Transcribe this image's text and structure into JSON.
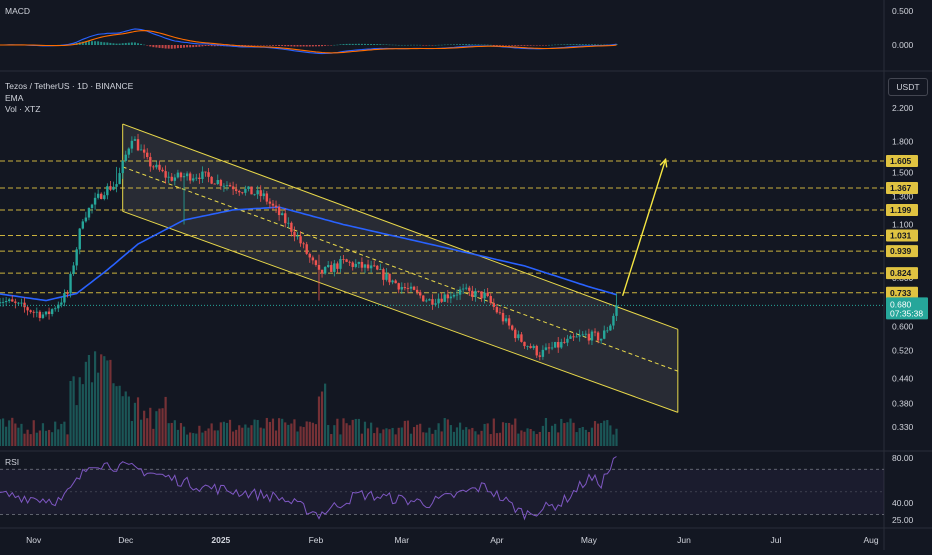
{
  "header": {
    "symbol_line": "Tezos / TetherUS · 1D · BINANCE",
    "ema_label": "EMA",
    "vol_label": "Vol · XTZ",
    "currency_button": "USDT",
    "macd_label": "MACD",
    "rsi_label": "RSI"
  },
  "colors": {
    "background": "#131722",
    "up": "#26a69a",
    "down": "#ef5350",
    "ema": "#2962ff",
    "channel": "#e8d84a",
    "level_line": "#e0c341",
    "arrow": "#f5e642",
    "rsi": "#7e57c2",
    "macd_line": "#2962ff",
    "signal_line": "#ff6d00",
    "last_price_tag": "#26a69a"
  },
  "chart_data": [
    {
      "type": "candlestick",
      "name": "price",
      "x_axis": {
        "ticks": [
          "Nov",
          "Dec",
          "2025",
          "Feb",
          "Mar",
          "Apr",
          "May",
          "Jun",
          "Jul",
          "Aug"
        ]
      },
      "y_axis": {
        "scale": "log",
        "range": [
          0.3,
          2.3
        ],
        "ticks": [
          "2.200",
          "1.800",
          "1.500",
          "1.300",
          "1.100",
          "0.940",
          "0.800",
          "0.700",
          "0.600",
          "0.520",
          "0.440",
          "0.380",
          "0.330"
        ]
      },
      "last_price": {
        "value": "0.680",
        "countdown": "07:35:38"
      },
      "horizontal_levels": [
        "1.605",
        "1.367",
        "1.199",
        "1.031",
        "0.939",
        "0.824",
        "0.733"
      ],
      "ohlc_anchors": [
        {
          "date": "2024-10-20",
          "close": 0.71
        },
        {
          "date": "2024-11-05",
          "close": 0.64
        },
        {
          "date": "2024-11-12",
          "close": 0.73
        },
        {
          "date": "2024-11-17",
          "close": 1.15
        },
        {
          "date": "2024-11-24",
          "close": 1.35
        },
        {
          "date": "2024-11-28",
          "close": 1.4
        },
        {
          "date": "2024-12-03",
          "close": 1.86
        },
        {
          "date": "2024-12-08",
          "close": 1.6
        },
        {
          "date": "2024-12-15",
          "close": 1.45
        },
        {
          "date": "2024-12-25",
          "close": 1.48
        },
        {
          "date": "2025-01-05",
          "close": 1.38
        },
        {
          "date": "2025-01-15",
          "close": 1.3
        },
        {
          "date": "2025-01-25",
          "close": 1.05
        },
        {
          "date": "2025-02-02",
          "close": 0.82
        },
        {
          "date": "2025-02-10",
          "close": 0.88
        },
        {
          "date": "2025-02-20",
          "close": 0.84
        },
        {
          "date": "2025-03-01",
          "close": 0.76
        },
        {
          "date": "2025-03-10",
          "close": 0.7
        },
        {
          "date": "2025-03-20",
          "close": 0.74
        },
        {
          "date": "2025-03-28",
          "close": 0.72
        },
        {
          "date": "2025-04-08",
          "close": 0.56
        },
        {
          "date": "2025-04-15",
          "close": 0.51
        },
        {
          "date": "2025-04-22",
          "close": 0.54
        },
        {
          "date": "2025-04-30",
          "close": 0.57
        },
        {
          "date": "2025-05-05",
          "close": 0.56
        },
        {
          "date": "2025-05-08",
          "close": 0.61
        },
        {
          "date": "2025-05-10",
          "close": 0.68
        }
      ],
      "ema_anchors": [
        {
          "date": "2024-10-20",
          "value": 0.73
        },
        {
          "date": "2024-11-05",
          "value": 0.7
        },
        {
          "date": "2024-11-15",
          "value": 0.73
        },
        {
          "date": "2024-11-25",
          "value": 0.84
        },
        {
          "date": "2024-12-05",
          "value": 0.98
        },
        {
          "date": "2024-12-20",
          "value": 1.13
        },
        {
          "date": "2025-01-05",
          "value": 1.2
        },
        {
          "date": "2025-01-20",
          "value": 1.22
        },
        {
          "date": "2025-02-10",
          "value": 1.1
        },
        {
          "date": "2025-03-10",
          "value": 0.98
        },
        {
          "date": "2025-04-10",
          "value": 0.86
        },
        {
          "date": "2025-05-01",
          "value": 0.76
        },
        {
          "date": "2025-05-10",
          "value": 0.725
        }
      ],
      "channel": {
        "upper": [
          {
            "date": "2024-11-30",
            "value": 2.0
          },
          {
            "date": "2025-05-30",
            "value": 0.59
          }
        ],
        "middle": [
          {
            "date": "2024-11-30",
            "value": 1.55
          },
          {
            "date": "2025-05-30",
            "value": 0.46
          }
        ],
        "lower": [
          {
            "date": "2024-11-30",
            "value": 1.19
          },
          {
            "date": "2025-05-30",
            "value": 0.36
          }
        ]
      },
      "projection_arrow": {
        "from": {
          "date": "2025-05-12",
          "value": 0.72
        },
        "to": {
          "date": "2025-05-26",
          "value": 1.62
        }
      }
    },
    {
      "type": "bar",
      "name": "volume",
      "note": "volume histogram at bottom of price pane, peak in mid Nov 2024"
    },
    {
      "type": "line",
      "name": "MACD",
      "y_axis": {
        "ticks": [
          "0.500",
          "0.000"
        ]
      }
    },
    {
      "type": "line",
      "name": "RSI",
      "y_axis": {
        "ticks": [
          "80.00",
          "40.00",
          "25.00"
        ]
      },
      "bands": [
        70,
        30
      ],
      "anchors": [
        {
          "date": "2024-10-20",
          "value": 48
        },
        {
          "date": "2024-11-10",
          "value": 42
        },
        {
          "date": "2024-11-20",
          "value": 76
        },
        {
          "date": "2024-12-05",
          "value": 70
        },
        {
          "date": "2024-12-25",
          "value": 55
        },
        {
          "date": "2025-01-20",
          "value": 45
        },
        {
          "date": "2025-02-02",
          "value": 30
        },
        {
          "date": "2025-02-15",
          "value": 48
        },
        {
          "date": "2025-03-10",
          "value": 40
        },
        {
          "date": "2025-03-28",
          "value": 55
        },
        {
          "date": "2025-04-10",
          "value": 30
        },
        {
          "date": "2025-04-22",
          "value": 40
        },
        {
          "date": "2025-05-01",
          "value": 62
        },
        {
          "date": "2025-05-05",
          "value": 58
        },
        {
          "date": "2025-05-10",
          "value": 80
        }
      ]
    }
  ]
}
